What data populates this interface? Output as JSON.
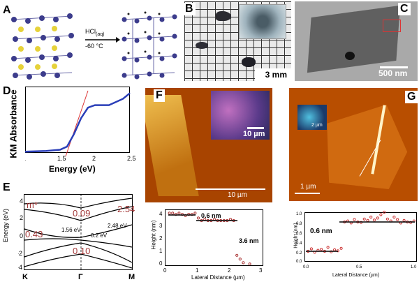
{
  "panels": {
    "A": {
      "label": "A",
      "reagent_main": "HCl",
      "reagent_sub": "(aq)",
      "temperature": "-60 °C"
    },
    "B": {
      "label": "B",
      "scalebar": "3 mm"
    },
    "C": {
      "label": "C",
      "scalebar": "500 nm"
    },
    "D": {
      "label": "D",
      "ylabel": "KM Absorbance",
      "xlabel": "Energy (eV)",
      "xticks": [
        "1",
        "1.5",
        "2",
        "2.5"
      ]
    },
    "E": {
      "label": "E",
      "ylabel": "Energy (eV)",
      "yticks": [
        "4",
        "2",
        "0",
        "-2",
        "-4"
      ],
      "xticks": [
        "K",
        "Γ",
        "M"
      ],
      "annotations": {
        "mstar": "m*",
        "v009": "0.09",
        "v254": "2.54",
        "v043": "0.43",
        "v010": "0.10",
        "gap156": "1.56 eV",
        "gap02": "0.2 eV",
        "gap248": "2.48 eV"
      }
    },
    "F": {
      "label": "F",
      "inset_scalebar": "10 µm",
      "scalebar": "10 µm",
      "step_small": "0.6 nm",
      "step_large": "3.6 nm",
      "profile_ylabel": "Height (nm)",
      "profile_xlabel": "Lateral Distance (µm)",
      "yticks": [
        "4",
        "3",
        "2",
        "1",
        "0"
      ],
      "xticks": [
        "0",
        "1",
        "2",
        "3"
      ]
    },
    "G": {
      "label": "G",
      "inset_scalebar": "2 µm",
      "scalebar": "1 µm",
      "step": "0.6 nm",
      "profile_ylabel": "Height (nm)",
      "profile_xlabel": "Lateral Distance (µm)",
      "yticks": [
        "1.0",
        "0.8",
        "0.6",
        "0.4",
        "0.2",
        "0.0"
      ],
      "xticks": [
        "0.0",
        "0.5",
        "1.0"
      ]
    }
  },
  "chart_data": [
    {
      "type": "line",
      "panel": "D",
      "xlabel": "Energy (eV)",
      "ylabel": "KM Absorbance",
      "xlim": [
        1,
        2.5
      ],
      "series": [
        {
          "x": [
            1.0,
            1.3,
            1.5,
            1.6,
            1.7,
            1.8,
            1.9,
            2.0,
            2.2,
            2.4,
            2.5
          ],
          "y": [
            0.02,
            0.03,
            0.05,
            0.1,
            0.3,
            0.55,
            0.72,
            0.76,
            0.76,
            0.86,
            0.95
          ]
        }
      ]
    },
    {
      "type": "scatter",
      "panel": "F",
      "xlabel": "Lateral Distance (µm)",
      "ylabel": "Height (nm)",
      "xlim": [
        0,
        3
      ],
      "ylim": [
        0,
        4.5
      ],
      "series": [
        {
          "x": [
            0.1,
            0.2,
            0.3,
            0.4,
            0.5,
            0.6,
            0.7,
            0.8,
            0.9,
            1.0,
            1.1,
            1.2,
            1.3,
            1.4,
            1.5,
            1.6,
            1.7,
            1.8,
            1.9,
            2.0,
            2.1,
            2.2,
            2.3,
            2.4,
            2.6
          ],
          "y": [
            4.2,
            4.2,
            4.1,
            4.2,
            4.1,
            4.0,
            4.1,
            4.1,
            4.2,
            3.8,
            3.6,
            3.7,
            3.6,
            3.6,
            3.7,
            3.6,
            3.6,
            3.6,
            3.6,
            3.7,
            3.6,
            0.8,
            0.5,
            0.2,
            0.1
          ]
        }
      ]
    },
    {
      "type": "scatter",
      "panel": "G",
      "xlabel": "Lateral Distance (µm)",
      "ylabel": "Height (nm)",
      "xlim": [
        0,
        1
      ],
      "ylim": [
        0,
        1.0
      ],
      "series": [
        {
          "x": [
            0.02,
            0.05,
            0.08,
            0.11,
            0.14,
            0.17,
            0.2,
            0.23,
            0.26,
            0.29,
            0.32,
            0.35,
            0.38,
            0.41,
            0.44,
            0.47,
            0.5,
            0.53,
            0.56,
            0.59,
            0.62,
            0.65,
            0.68,
            0.71,
            0.74,
            0.77,
            0.8,
            0.83,
            0.86,
            0.89,
            0.92,
            0.95,
            0.98
          ],
          "y": [
            0.2,
            0.25,
            0.18,
            0.22,
            0.24,
            0.2,
            0.28,
            0.19,
            0.23,
            0.21,
            0.26,
            0.8,
            0.82,
            0.78,
            0.85,
            0.8,
            0.79,
            0.86,
            0.83,
            0.9,
            0.84,
            0.88,
            0.95,
            1.0,
            0.86,
            0.82,
            0.9,
            0.85,
            0.78,
            0.83,
            0.8,
            0.79,
            0.82
          ]
        }
      ]
    }
  ]
}
